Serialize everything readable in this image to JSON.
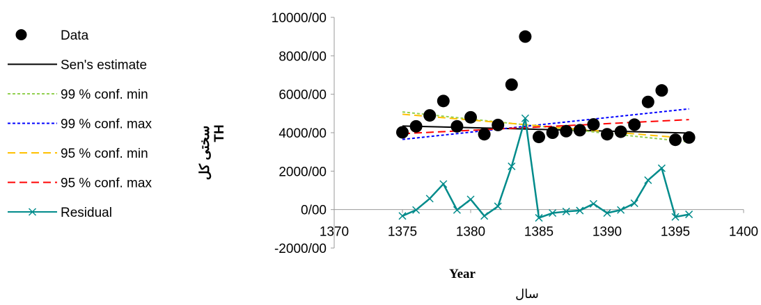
{
  "chart_data": {
    "type": "line",
    "title": "",
    "xlabel_en": "Year",
    "xlabel_fa": "سال",
    "ylabel_fa": "سختی کل",
    "ylabel_en": "TH",
    "xlim": [
      1370,
      1400
    ],
    "ylim": [
      -2000,
      10000
    ],
    "xticks": [
      "1370",
      "1375",
      "1380",
      "1385",
      "1390",
      "1395",
      "1400"
    ],
    "yticks": [
      "-2000/00",
      "0/00",
      "2000/00",
      "4000/00",
      "6000/00",
      "8000/00",
      "10000/00"
    ],
    "grid": false,
    "legend_position": "left",
    "series": [
      {
        "name": "Data",
        "kind": "marker",
        "color": "#000000",
        "x": [
          1375,
          1376,
          1377,
          1378,
          1379,
          1380,
          1381,
          1382,
          1383,
          1384,
          1385,
          1386,
          1387,
          1388,
          1389,
          1390,
          1391,
          1392,
          1393,
          1394,
          1395,
          1396
        ],
        "y": [
          4020,
          4330,
          4900,
          5650,
          4330,
          4800,
          3920,
          4400,
          6500,
          9000,
          3780,
          4000,
          4080,
          4130,
          4430,
          3920,
          4050,
          4420,
          5600,
          6200,
          3630,
          3750
        ]
      },
      {
        "name": "Sen's estimate",
        "kind": "line",
        "color": "#000000",
        "dash": "none",
        "x": [
          1375,
          1396
        ],
        "y": [
          4350,
          3980
        ]
      },
      {
        "name": "99 % conf. min",
        "kind": "line",
        "color": "#92d050",
        "dash": "short",
        "x": [
          1375,
          1396
        ],
        "y": [
          5080,
          3520
        ]
      },
      {
        "name": "99 % conf. max",
        "kind": "line",
        "color": "#0000ff",
        "dash": "short",
        "x": [
          1375,
          1396
        ],
        "y": [
          3650,
          5240
        ]
      },
      {
        "name": "95 % conf. min",
        "kind": "line",
        "color": "#ffc000",
        "dash": "long",
        "x": [
          1375,
          1396
        ],
        "y": [
          4960,
          3700
        ]
      },
      {
        "name": "95 % conf. max",
        "kind": "line",
        "color": "#ff0000",
        "dash": "long",
        "x": [
          1375,
          1396
        ],
        "y": [
          3950,
          4680
        ]
      },
      {
        "name": "Residual",
        "kind": "residual",
        "color": "#008b8b",
        "x": [
          1375,
          1376,
          1377,
          1378,
          1379,
          1380,
          1381,
          1382,
          1383,
          1384,
          1385,
          1386,
          1387,
          1388,
          1389,
          1390,
          1391,
          1392,
          1393,
          1394,
          1395,
          1396
        ],
        "y": [
          -330,
          -20,
          570,
          1330,
          -20,
          530,
          -330,
          170,
          2250,
          4750,
          -430,
          -180,
          -100,
          -50,
          300,
          -180,
          -20,
          330,
          1530,
          2150,
          -380,
          -250
        ]
      }
    ]
  }
}
